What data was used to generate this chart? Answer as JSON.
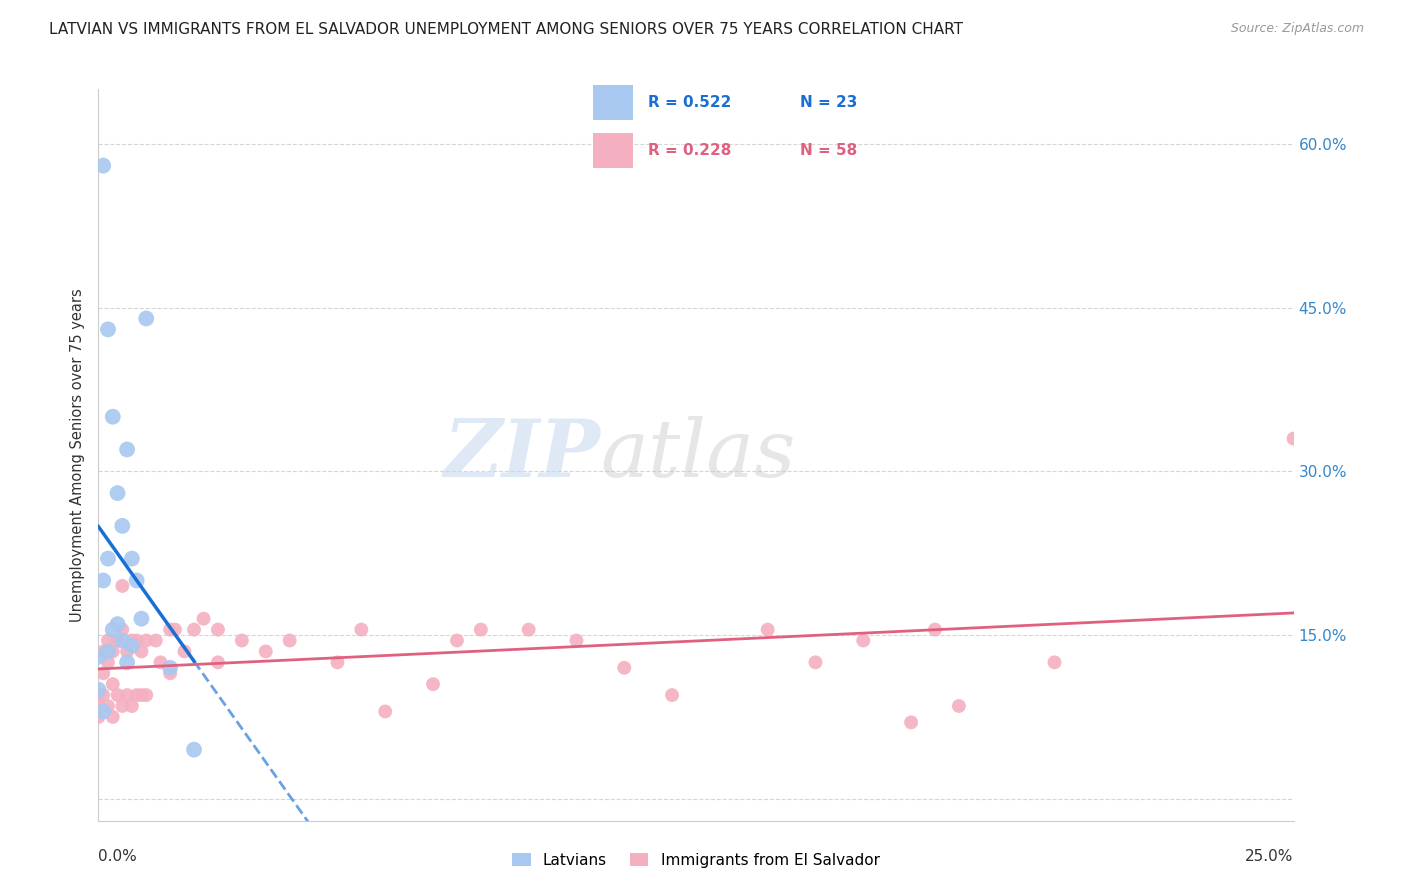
{
  "title": "LATVIAN VS IMMIGRANTS FROM EL SALVADOR UNEMPLOYMENT AMONG SENIORS OVER 75 YEARS CORRELATION CHART",
  "source": "Source: ZipAtlas.com",
  "ylabel": "Unemployment Among Seniors over 75 years",
  "xlim": [
    0.0,
    0.25
  ],
  "ylim": [
    -0.02,
    0.65
  ],
  "yticks": [
    0.0,
    0.15,
    0.3,
    0.45,
    0.6
  ],
  "ytick_labels": [
    "",
    "15.0%",
    "30.0%",
    "45.0%",
    "60.0%"
  ],
  "background_color": "#ffffff",
  "watermark_zip": "ZIP",
  "watermark_atlas": "atlas",
  "latvian_color": "#a8c8f0",
  "latvian_line_color": "#1a6fd4",
  "salvador_color": "#f4b0c0",
  "salvador_line_color": "#e06080",
  "latvian_x": [
    0.0,
    0.0,
    0.001,
    0.001,
    0.001,
    0.002,
    0.002,
    0.002,
    0.003,
    0.003,
    0.004,
    0.004,
    0.005,
    0.005,
    0.006,
    0.006,
    0.007,
    0.007,
    0.008,
    0.009,
    0.01,
    0.015,
    0.02
  ],
  "latvian_y": [
    0.13,
    0.1,
    0.58,
    0.2,
    0.08,
    0.43,
    0.22,
    0.135,
    0.35,
    0.155,
    0.28,
    0.16,
    0.25,
    0.145,
    0.32,
    0.125,
    0.22,
    0.14,
    0.2,
    0.165,
    0.44,
    0.12,
    0.045
  ],
  "salvador_x": [
    0.0,
    0.0,
    0.0,
    0.001,
    0.001,
    0.001,
    0.002,
    0.002,
    0.002,
    0.003,
    0.003,
    0.003,
    0.004,
    0.004,
    0.005,
    0.005,
    0.005,
    0.006,
    0.006,
    0.007,
    0.007,
    0.008,
    0.008,
    0.009,
    0.009,
    0.01,
    0.01,
    0.012,
    0.013,
    0.015,
    0.015,
    0.016,
    0.018,
    0.02,
    0.022,
    0.025,
    0.025,
    0.03,
    0.035,
    0.04,
    0.05,
    0.055,
    0.06,
    0.07,
    0.075,
    0.08,
    0.09,
    0.1,
    0.11,
    0.12,
    0.14,
    0.15,
    0.16,
    0.17,
    0.175,
    0.18,
    0.2,
    0.25
  ],
  "salvador_y": [
    0.095,
    0.085,
    0.075,
    0.135,
    0.115,
    0.095,
    0.145,
    0.125,
    0.085,
    0.135,
    0.105,
    0.075,
    0.145,
    0.095,
    0.195,
    0.155,
    0.085,
    0.135,
    0.095,
    0.145,
    0.085,
    0.145,
    0.095,
    0.135,
    0.095,
    0.145,
    0.095,
    0.145,
    0.125,
    0.155,
    0.115,
    0.155,
    0.135,
    0.155,
    0.165,
    0.155,
    0.125,
    0.145,
    0.135,
    0.145,
    0.125,
    0.155,
    0.08,
    0.105,
    0.145,
    0.155,
    0.155,
    0.145,
    0.12,
    0.095,
    0.155,
    0.125,
    0.145,
    0.07,
    0.155,
    0.085,
    0.125,
    0.33
  ],
  "dot_size_latvian": 130,
  "dot_size_salvador": 100
}
